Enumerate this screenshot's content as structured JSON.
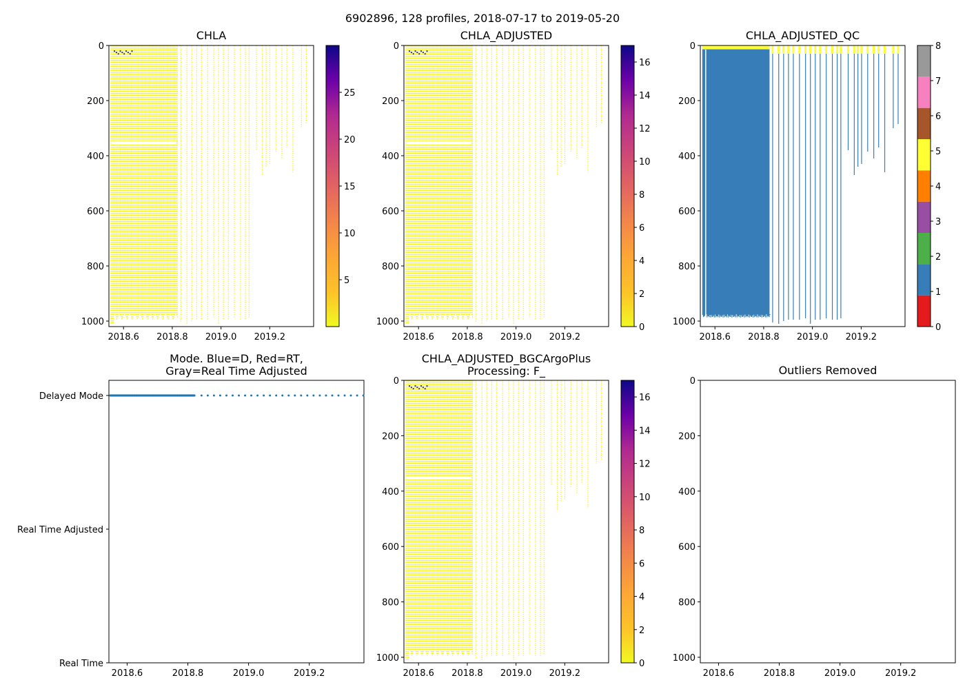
{
  "figure_title": "6902896, 128 profiles, 2018-07-17 to 2019-05-20",
  "colors": {
    "profile_yellow": "#f4f017",
    "qc_blue": "#377eb8",
    "mode_blue": "#1f77b4",
    "white": "#ffffff",
    "dark_patch": "#333366"
  },
  "chart_data": [
    {
      "id": "chla",
      "type": "heatmap",
      "title": "CHLA",
      "x_ticks": [
        "2018.6",
        "2018.8",
        "2019.0",
        "2019.2"
      ],
      "x_tick_values": [
        2018.6,
        2018.8,
        2019.0,
        2019.2
      ],
      "xlim": [
        2018.54,
        2019.38
      ],
      "y_ticks": [
        "0",
        "200",
        "400",
        "600",
        "800",
        "1000"
      ],
      "y_tick_values": [
        0,
        200,
        400,
        600,
        800,
        1000
      ],
      "ylim": [
        1020,
        0
      ],
      "colormap": "plasma_r",
      "colorbar": {
        "ticks": [
          "5",
          "10",
          "15",
          "20",
          "25"
        ],
        "tick_values": [
          5,
          10,
          15,
          20,
          25
        ],
        "range": [
          0,
          30
        ]
      },
      "style": "chl"
    },
    {
      "id": "chla-adjusted",
      "type": "heatmap",
      "title": "CHLA_ADJUSTED",
      "x_ticks": [
        "2018.6",
        "2018.8",
        "2019.0",
        "2019.2"
      ],
      "x_tick_values": [
        2018.6,
        2018.8,
        2019.0,
        2019.2
      ],
      "xlim": [
        2018.54,
        2019.38
      ],
      "y_ticks": [
        "0",
        "200",
        "400",
        "600",
        "800",
        "1000"
      ],
      "y_tick_values": [
        0,
        200,
        400,
        600,
        800,
        1000
      ],
      "ylim": [
        1020,
        0
      ],
      "colormap": "plasma_r",
      "colorbar": {
        "ticks": [
          "0",
          "2",
          "4",
          "6",
          "8",
          "10",
          "12",
          "14",
          "16"
        ],
        "tick_values": [
          0,
          2,
          4,
          6,
          8,
          10,
          12,
          14,
          16
        ],
        "range": [
          0,
          17
        ]
      },
      "style": "chl"
    },
    {
      "id": "chla-adjusted-qc",
      "type": "heatmap",
      "title": "CHLA_ADJUSTED_QC",
      "x_ticks": [
        "2018.6",
        "2018.8",
        "2019.0",
        "2019.2"
      ],
      "x_tick_values": [
        2018.6,
        2018.8,
        2019.0,
        2019.2
      ],
      "xlim": [
        2018.54,
        2019.38
      ],
      "y_ticks": [
        "0",
        "200",
        "400",
        "600",
        "800",
        "1000"
      ],
      "y_tick_values": [
        0,
        200,
        400,
        600,
        800,
        1000
      ],
      "ylim": [
        1020,
        0
      ],
      "colormap": "Set1 (QC flags)",
      "colorbar": {
        "ticks": [
          "0",
          "1",
          "2",
          "3",
          "4",
          "5",
          "6",
          "7",
          "8"
        ],
        "tick_values": [
          0,
          1,
          2,
          3,
          4,
          5,
          6,
          7,
          8
        ],
        "range": [
          0,
          8
        ],
        "segments": [
          "#e41a1c",
          "#377eb8",
          "#4daf4a",
          "#984ea3",
          "#ff7f00",
          "#ffff33",
          "#a65628",
          "#f781bf",
          "#999999"
        ]
      },
      "style": "qc"
    },
    {
      "id": "mode",
      "type": "scatter",
      "title_lines": [
        "Mode. Blue=D, Red=RT,",
        "Gray=Real Time Adjusted"
      ],
      "x_ticks": [
        "2018.6",
        "2018.8",
        "2019.0",
        "2019.2"
      ],
      "x_tick_values": [
        2018.6,
        2018.8,
        2019.0,
        2019.2
      ],
      "xlim": [
        2018.54,
        2019.38
      ],
      "y_categories": [
        "Delayed Mode",
        "Real Time Adjusted",
        "Real Time"
      ],
      "series": [
        {
          "name": "Delayed Mode",
          "category": "Delayed Mode",
          "x_start": 2018.545,
          "x_end": 2019.38,
          "profiles": 128
        }
      ]
    },
    {
      "id": "bgcargoplus",
      "type": "heatmap",
      "title_lines": [
        "CHLA_ADJUSTED_BGCArgoPlus",
        "Processing: F_"
      ],
      "x_ticks": [
        "2018.6",
        "2018.8",
        "2019.0",
        "2019.2"
      ],
      "x_tick_values": [
        2018.6,
        2018.8,
        2019.0,
        2019.2
      ],
      "xlim": [
        2018.54,
        2019.38
      ],
      "y_ticks": [
        "0",
        "200",
        "400",
        "600",
        "800",
        "1000"
      ],
      "y_tick_values": [
        0,
        200,
        400,
        600,
        800,
        1000
      ],
      "ylim": [
        1020,
        0
      ],
      "colormap": "plasma_r",
      "colorbar": {
        "ticks": [
          "0",
          "2",
          "4",
          "6",
          "8",
          "10",
          "12",
          "14",
          "16"
        ],
        "tick_values": [
          0,
          2,
          4,
          6,
          8,
          10,
          12,
          14,
          16
        ],
        "range": [
          0,
          17
        ]
      },
      "style": "chl"
    },
    {
      "id": "outliers",
      "type": "scatter",
      "title": "Outliers Removed",
      "x_ticks": [
        "2018.6",
        "2018.8",
        "2019.0",
        "2019.2"
      ],
      "x_tick_values": [
        2018.6,
        2018.8,
        2019.0,
        2019.2
      ],
      "xlim": [
        2018.54,
        2019.38
      ],
      "y_ticks": [
        "0",
        "200",
        "400",
        "600",
        "800",
        "1000"
      ],
      "y_tick_values": [
        0,
        200,
        400,
        600,
        800,
        1000
      ],
      "ylim": [
        1020,
        0
      ],
      "series": []
    }
  ]
}
